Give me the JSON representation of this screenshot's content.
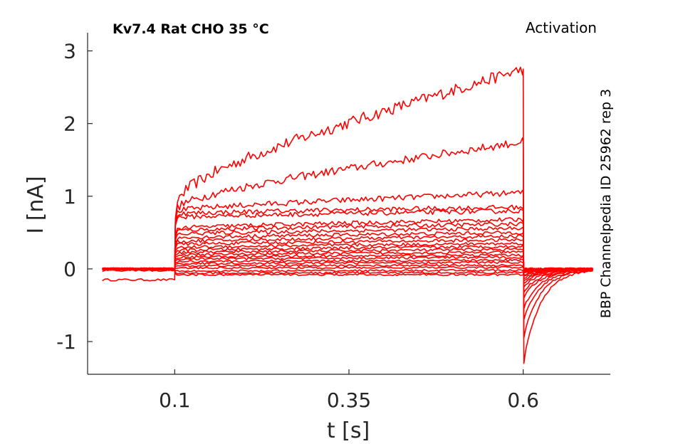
{
  "chart_data": {
    "type": "line",
    "title_left": "Kv7.4  Rat  CHO  35 °C",
    "title_right": "Activation",
    "side_label": "BBP Channelpedia ID 25962 rep 3",
    "xlabel": "t [s]",
    "ylabel": "I [nA]",
    "xlim": [
      -0.025,
      0.725
    ],
    "ylim": [
      -1.45,
      3.25
    ],
    "xticks": [
      "0.1",
      "0.35",
      "0.6"
    ],
    "yticks": [
      "-1",
      "0",
      "1",
      "2",
      "3"
    ],
    "grid": false,
    "color": "#ff0000",
    "stimulus": {
      "on": 0.1,
      "off": 0.6,
      "end": 0.7
    },
    "series": [
      {
        "pre": -0.15,
        "start": 0.82,
        "end": 2.75,
        "tail": -1.3
      },
      {
        "pre": -0.02,
        "start": 0.78,
        "end": 1.75,
        "tail": -0.95
      },
      {
        "pre": -0.01,
        "start": 0.78,
        "end": 1.05,
        "tail": -0.7
      },
      {
        "pre": 0.0,
        "start": 0.75,
        "end": 0.85,
        "tail": -0.55
      },
      {
        "pre": 0.0,
        "start": 0.7,
        "end": 0.8,
        "tail": -0.4
      },
      {
        "pre": 0.0,
        "start": 0.55,
        "end": 0.68,
        "tail": -0.32
      },
      {
        "pre": 0.0,
        "start": 0.52,
        "end": 0.62,
        "tail": -0.25
      },
      {
        "pre": 0.0,
        "start": 0.47,
        "end": 0.56,
        "tail": -0.2
      },
      {
        "pre": 0.0,
        "start": 0.42,
        "end": 0.5,
        "tail": -0.16
      },
      {
        "pre": 0.0,
        "start": 0.37,
        "end": 0.45,
        "tail": -0.13
      },
      {
        "pre": 0.0,
        "start": 0.33,
        "end": 0.4,
        "tail": -0.1
      },
      {
        "pre": 0.0,
        "start": 0.29,
        "end": 0.35,
        "tail": -0.08
      },
      {
        "pre": 0.0,
        "start": 0.25,
        "end": 0.31,
        "tail": -0.06
      },
      {
        "pre": 0.0,
        "start": 0.22,
        "end": 0.27,
        "tail": -0.05
      },
      {
        "pre": 0.0,
        "start": 0.19,
        "end": 0.23,
        "tail": -0.04
      },
      {
        "pre": 0.0,
        "start": 0.16,
        "end": 0.19,
        "tail": -0.03
      },
      {
        "pre": 0.0,
        "start": 0.13,
        "end": 0.16,
        "tail": -0.02
      },
      {
        "pre": 0.0,
        "start": 0.1,
        "end": 0.12,
        "tail": -0.02
      },
      {
        "pre": 0.0,
        "start": 0.07,
        "end": 0.09,
        "tail": -0.01
      },
      {
        "pre": 0.0,
        "start": 0.04,
        "end": 0.05,
        "tail": 0.0
      },
      {
        "pre": 0.0,
        "start": 0.01,
        "end": 0.02,
        "tail": 0.0
      },
      {
        "pre": 0.0,
        "start": -0.03,
        "end": -0.02,
        "tail": 0.0
      },
      {
        "pre": 0.0,
        "start": -0.06,
        "end": -0.05,
        "tail": 0.0
      },
      {
        "pre": 0.0,
        "start": -0.08,
        "end": -0.08,
        "tail": 0.0
      }
    ]
  }
}
